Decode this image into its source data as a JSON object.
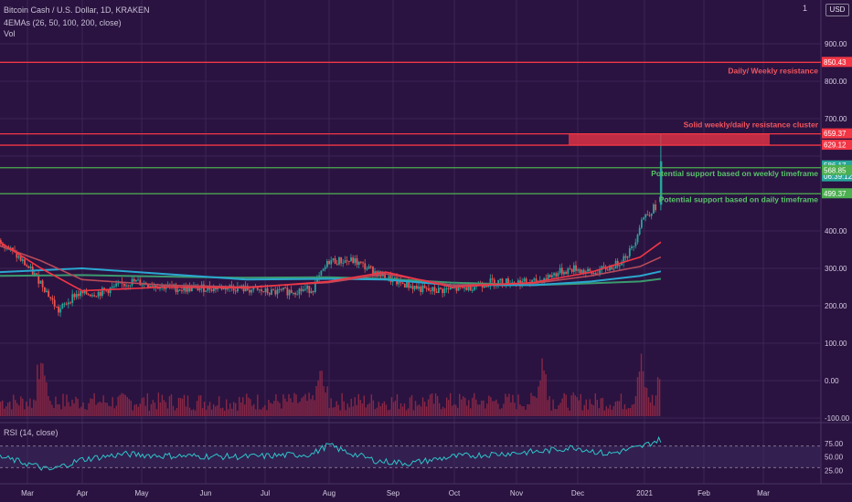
{
  "header": {
    "symbol": "Bitcoin Cash / U.S. Dollar, 1D, KRAKEN",
    "indicator": "4EMAs (26, 50, 100, 200, close)",
    "volume": "Vol"
  },
  "rsi_label": "RSI (14, close)",
  "currency_button": "USD",
  "top_scale": "1",
  "colors": {
    "background": "#2a1340",
    "grid": "#3c2656",
    "resistance": "#f23645",
    "support": "#4caf50",
    "resistance_text": "#f2555f",
    "support_text": "#59c36a",
    "ema26": "#f23645",
    "ema50": "#b84a5a",
    "ema100": "#2aa7d0",
    "ema200": "#3b9a6e",
    "rsi_line": "#2ec4c9",
    "volume": "#9a2b46"
  },
  "price_axis": {
    "ticks": [
      "900.00",
      "800.00",
      "700.00",
      "400.00",
      "300.00",
      "200.00",
      "100.00",
      "0.00",
      "-100.00"
    ]
  },
  "price_tags": [
    {
      "label": "850.43",
      "color": "#f23645"
    },
    {
      "label": "659.37",
      "color": "#f23645"
    },
    {
      "label": "629.12",
      "color": "#f23645"
    },
    {
      "label": "586.17",
      "color": "#26a69a"
    },
    {
      "label": "06:39:12",
      "color": "#26a69a"
    },
    {
      "label": "568.85",
      "color": "#4caf50"
    },
    {
      "label": "499.37",
      "color": "#4caf50"
    }
  ],
  "annotations": {
    "weekly_resistance": "Daily/ Weekly resistance",
    "resistance_cluster": "Solid weekly/daily resistance cluster",
    "support_weekly": "Potential support based on weekly timeframe",
    "support_daily": "Potential support based on daily timeframe"
  },
  "rsi_axis": {
    "ticks": [
      "75.00",
      "50.00",
      "25.00"
    ]
  },
  "time_axis": {
    "labels": [
      "Mar",
      "Apr",
      "May",
      "Jun",
      "Jul",
      "Aug",
      "Sep",
      "Oct",
      "Nov",
      "Dec",
      "2021",
      "Feb",
      "Mar"
    ]
  },
  "chart_data": {
    "type": "candlestick",
    "title": "Bitcoin Cash / U.S. Dollar, 1D, KRAKEN",
    "levels": [
      850.43,
      659.37,
      629.12,
      568.85,
      499.37
    ],
    "last_price": 586.17,
    "price_path": [
      [
        0,
        375
      ],
      [
        0.03,
        310
      ],
      [
        0.05,
        260
      ],
      [
        0.07,
        185
      ],
      [
        0.09,
        230
      ],
      [
        0.12,
        235
      ],
      [
        0.16,
        265
      ],
      [
        0.22,
        245
      ],
      [
        0.28,
        250
      ],
      [
        0.33,
        235
      ],
      [
        0.38,
        245
      ],
      [
        0.4,
        320
      ],
      [
        0.43,
        320
      ],
      [
        0.46,
        285
      ],
      [
        0.48,
        265
      ],
      [
        0.52,
        240
      ],
      [
        0.56,
        245
      ],
      [
        0.6,
        265
      ],
      [
        0.65,
        262
      ],
      [
        0.68,
        290
      ],
      [
        0.7,
        300
      ],
      [
        0.72,
        285
      ],
      [
        0.75,
        310
      ],
      [
        0.77,
        355
      ],
      [
        0.78,
        430
      ],
      [
        0.8,
        470
      ],
      [
        0.805,
        586
      ]
    ],
    "ema26_path": [
      [
        0,
        370
      ],
      [
        0.05,
        300
      ],
      [
        0.1,
        240
      ],
      [
        0.2,
        250
      ],
      [
        0.3,
        248
      ],
      [
        0.4,
        265
      ],
      [
        0.47,
        290
      ],
      [
        0.55,
        250
      ],
      [
        0.65,
        262
      ],
      [
        0.72,
        290
      ],
      [
        0.78,
        330
      ],
      [
        0.805,
        370
      ]
    ],
    "ema50_path": [
      [
        0,
        360
      ],
      [
        0.05,
        320
      ],
      [
        0.1,
        270
      ],
      [
        0.2,
        255
      ],
      [
        0.3,
        250
      ],
      [
        0.4,
        262
      ],
      [
        0.47,
        285
      ],
      [
        0.55,
        255
      ],
      [
        0.65,
        260
      ],
      [
        0.72,
        280
      ],
      [
        0.78,
        305
      ],
      [
        0.805,
        330
      ]
    ],
    "ema100_path": [
      [
        0,
        290
      ],
      [
        0.1,
        300
      ],
      [
        0.2,
        285
      ],
      [
        0.3,
        270
      ],
      [
        0.4,
        272
      ],
      [
        0.47,
        270
      ],
      [
        0.55,
        255
      ],
      [
        0.65,
        255
      ],
      [
        0.72,
        265
      ],
      [
        0.78,
        280
      ],
      [
        0.805,
        292
      ]
    ],
    "ema200_path": [
      [
        0,
        280
      ],
      [
        0.1,
        282
      ],
      [
        0.2,
        278
      ],
      [
        0.3,
        275
      ],
      [
        0.4,
        276
      ],
      [
        0.47,
        272
      ],
      [
        0.55,
        262
      ],
      [
        0.65,
        255
      ],
      [
        0.72,
        260
      ],
      [
        0.78,
        265
      ],
      [
        0.805,
        272
      ]
    ],
    "rsi_range": [
      0,
      100
    ],
    "rsi_levels": [
      70,
      30
    ],
    "rsi_path": [
      [
        0,
        50
      ],
      [
        0.04,
        35
      ],
      [
        0.06,
        25
      ],
      [
        0.1,
        45
      ],
      [
        0.15,
        55
      ],
      [
        0.2,
        52
      ],
      [
        0.3,
        50
      ],
      [
        0.38,
        55
      ],
      [
        0.4,
        72
      ],
      [
        0.42,
        60
      ],
      [
        0.46,
        42
      ],
      [
        0.5,
        38
      ],
      [
        0.55,
        50
      ],
      [
        0.6,
        55
      ],
      [
        0.66,
        60
      ],
      [
        0.7,
        68
      ],
      [
        0.74,
        55
      ],
      [
        0.78,
        68
      ],
      [
        0.8,
        80
      ],
      [
        0.805,
        82
      ]
    ],
    "volume_range": [
      -100,
      100
    ],
    "volume_peaks": [
      [
        0.05,
        95
      ],
      [
        0.39,
        60
      ],
      [
        0.66,
        90
      ],
      [
        0.78,
        80
      ],
      [
        0.805,
        65
      ]
    ]
  }
}
